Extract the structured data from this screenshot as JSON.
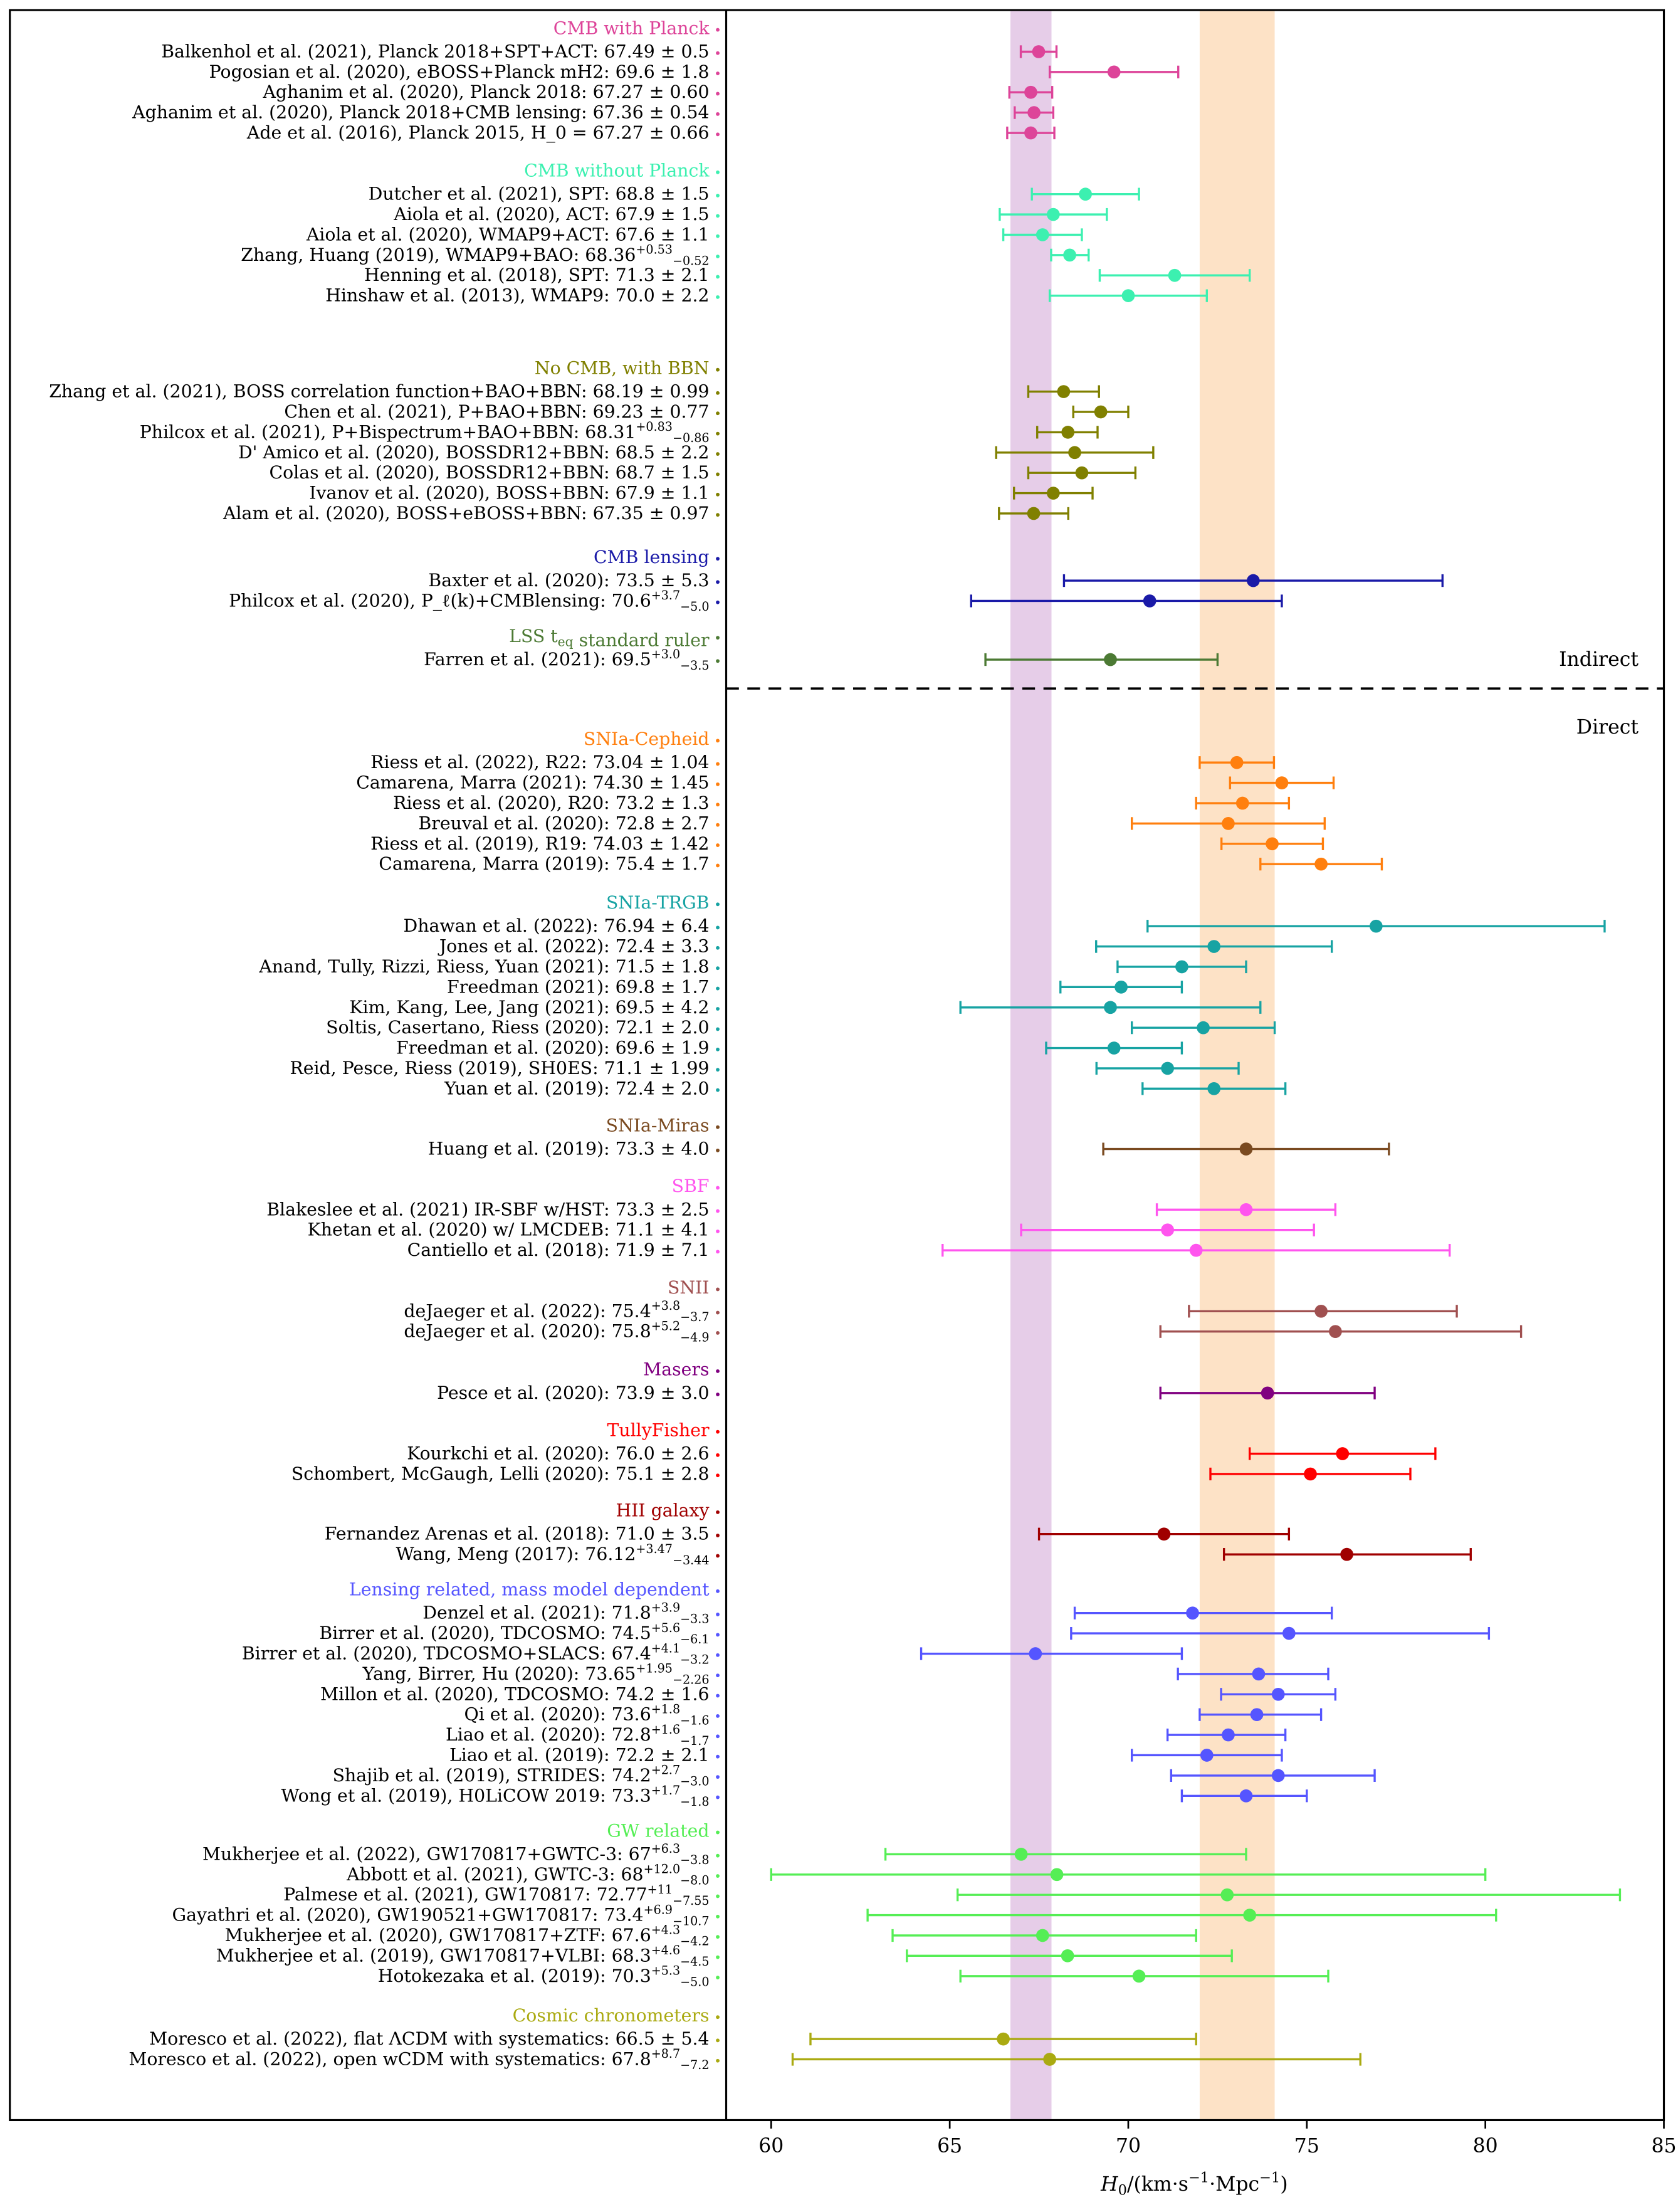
{
  "chart_data": {
    "type": "scatter",
    "subtype": "forest-plot-with-errorbars",
    "xlabel": "H_0/(km·s^{-1}·Mpc^{-1})",
    "xlim": [
      58.74,
      85
    ],
    "xticks": [
      60,
      65,
      70,
      75,
      80,
      85
    ],
    "grid": false,
    "section_labels": {
      "indirect": "Indirect",
      "direct": "Direct"
    },
    "bands": [
      {
        "from": 66.7,
        "to": 67.85,
        "color": "#e6cde8"
      },
      {
        "from": 72.0,
        "to": 74.1,
        "color": "#fde2c6"
      }
    ],
    "groups": [
      {
        "name": "CMB with Planck",
        "color": "#dd4499",
        "section": "indirect",
        "items": [
          {
            "label": "Balkenhol et al. (2021), Planck 2018+SPT+ACT: ",
            "value": "67.49",
            "err": "0.5"
          },
          {
            "label": "Pogosian et al. (2020), eBOSS+Planck mH2: ",
            "value": "69.6",
            "err": "1.8"
          },
          {
            "label": "Aghanim et al. (2020), Planck 2018: ",
            "value": "67.27",
            "err": "0.60"
          },
          {
            "label": "Aghanim et al. (2020), Planck 2018+CMB lensing: ",
            "value": "67.36",
            "err": "0.54"
          },
          {
            "label": "Ade et al. (2016), Planck 2015, H_0 = ",
            "value": "67.27",
            "err": "0.66"
          }
        ]
      },
      {
        "name": "CMB without Planck",
        "color": "#3cf0b0",
        "section": "indirect",
        "items": [
          {
            "label": "Dutcher et al. (2021), SPT: ",
            "value": "68.8",
            "err": "1.5"
          },
          {
            "label": "Aiola et al. (2020), ACT: ",
            "value": "67.9",
            "err": "1.5"
          },
          {
            "label": "Aiola et al. (2020), WMAP9+ACT: ",
            "value": "67.6",
            "err": "1.1"
          },
          {
            "label": "Zhang, Huang (2019), WMAP9+BAO: ",
            "value": "68.36",
            "plus": "0.53",
            "minus": "0.52"
          },
          {
            "label": "Henning et al. (2018), SPT: ",
            "value": "71.3",
            "err": "2.1"
          },
          {
            "label": "Hinshaw et al. (2013), WMAP9: ",
            "value": "70.0",
            "err": "2.2"
          }
        ]
      },
      {
        "name": "No CMB, with BBN",
        "color": "#808000",
        "section": "indirect",
        "items": [
          {
            "label": "Zhang et al. (2021), BOSS correlation function+BAO+BBN: ",
            "value": "68.19",
            "err": "0.99"
          },
          {
            "label": "Chen et al. (2021), P+BAO+BBN: ",
            "value": "69.23",
            "err": "0.77"
          },
          {
            "label": "Philcox et al. (2021), P+Bispectrum+BAO+BBN: ",
            "value": "68.31",
            "plus": "0.83",
            "minus": "0.86"
          },
          {
            "label": "D' Amico et al. (2020), BOSSDR12+BBN: ",
            "value": "68.5",
            "err": "2.2"
          },
          {
            "label": "Colas et al. (2020), BOSSDR12+BBN: ",
            "value": "68.7",
            "err": "1.5"
          },
          {
            "label": "Ivanov et al. (2020), BOSS+BBN: ",
            "value": "67.9",
            "err": "1.1"
          },
          {
            "label": "Alam et al. (2020), BOSS+eBOSS+BBN: ",
            "value": "67.35",
            "err": "0.97"
          }
        ]
      },
      {
        "name": "CMB lensing",
        "color": "#1a1aa8",
        "section": "indirect",
        "items": [
          {
            "label": "Baxter et al. (2020): ",
            "value": "73.5",
            "err": "5.3"
          },
          {
            "label": "Philcox et al. (2020), P_ℓ(k)+CMBlensing: ",
            "value": "70.6",
            "plus": "3.7",
            "minus": "5.0"
          }
        ]
      },
      {
        "name": "LSS t_eq standard ruler",
        "color": "#4c7a34",
        "section": "indirect",
        "items": [
          {
            "label": "Farren et al. (2021): ",
            "value": "69.5",
            "plus": "3.0",
            "minus": "3.5"
          }
        ]
      },
      {
        "name": "SNIa-Cepheid",
        "color": "#ff7f0e",
        "section": "direct",
        "items": [
          {
            "label": "Riess et al. (2022), R22: ",
            "value": "73.04",
            "err": "1.04"
          },
          {
            "label": "Camarena, Marra (2021): ",
            "value": "74.30",
            "err": "1.45"
          },
          {
            "label": "Riess et al. (2020), R20: ",
            "value": "73.2",
            "err": "1.3"
          },
          {
            "label": "Breuval et al. (2020): ",
            "value": "72.8",
            "err": "2.7"
          },
          {
            "label": "Riess et al. (2019), R19: ",
            "value": "74.03",
            "err": "1.42"
          },
          {
            "label": "Camarena, Marra (2019): ",
            "value": "75.4",
            "err": "1.7"
          }
        ]
      },
      {
        "name": "SNIa-TRGB",
        "color": "#17a3a3",
        "section": "direct",
        "items": [
          {
            "label": "Dhawan et al. (2022): ",
            "value": "76.94",
            "err": "6.4"
          },
          {
            "label": "Jones et al. (2022): ",
            "value": "72.4",
            "err": "3.3"
          },
          {
            "label": "Anand, Tully, Rizzi, Riess, Yuan (2021): ",
            "value": "71.5",
            "err": "1.8"
          },
          {
            "label": "Freedman (2021): ",
            "value": "69.8",
            "err": "1.7"
          },
          {
            "label": "Kim, Kang, Lee, Jang (2021): ",
            "value": "69.5",
            "err": "4.2"
          },
          {
            "label": "Soltis, Casertano, Riess (2020): ",
            "value": "72.1",
            "err": "2.0"
          },
          {
            "label": "Freedman et al. (2020): ",
            "value": "69.6",
            "err": "1.9"
          },
          {
            "label": "Reid, Pesce, Riess (2019), SH0ES: ",
            "value": "71.1",
            "err": "1.99"
          },
          {
            "label": "Yuan et al. (2019): ",
            "value": "72.4",
            "err": "2.0"
          }
        ]
      },
      {
        "name": "SNIa-Miras",
        "color": "#7a4a20",
        "section": "direct",
        "items": [
          {
            "label": "Huang et al. (2019): ",
            "value": "73.3",
            "err": "4.0"
          }
        ]
      },
      {
        "name": "SBF",
        "color": "#ff55ee",
        "section": "direct",
        "items": [
          {
            "label": "Blakeslee et al. (2021) IR-SBF w/HST: ",
            "value": "73.3",
            "err": "2.5"
          },
          {
            "label": "Khetan et al. (2020) w/ LMCDEB: ",
            "value": "71.1",
            "err": "4.1"
          },
          {
            "label": "Cantiello et al. (2018): ",
            "value": "71.9",
            "err": "7.1"
          }
        ]
      },
      {
        "name": "SNII",
        "color": "#a05050",
        "section": "direct",
        "items": [
          {
            "label": "deJaeger et al. (2022): ",
            "value": "75.4",
            "plus": "3.8",
            "minus": "3.7"
          },
          {
            "label": "deJaeger et al. (2020): ",
            "value": "75.8",
            "plus": "5.2",
            "minus": "4.9"
          }
        ]
      },
      {
        "name": "Masers",
        "color": "#800080",
        "section": "direct",
        "items": [
          {
            "label": "Pesce et al. (2020): ",
            "value": "73.9",
            "err": "3.0"
          }
        ]
      },
      {
        "name": "TullyFisher",
        "color": "#ff0000",
        "section": "direct",
        "items": [
          {
            "label": "Kourkchi et al. (2020): ",
            "value": "76.0",
            "err": "2.6"
          },
          {
            "label": "Schombert, McGaugh, Lelli (2020): ",
            "value": "75.1",
            "err": "2.8"
          }
        ]
      },
      {
        "name": "HII galaxy",
        "color": "#a00000",
        "section": "direct",
        "items": [
          {
            "label": "Fernandez Arenas et al. (2018): ",
            "value": "71.0",
            "err": "3.5"
          },
          {
            "label": "Wang, Meng (2017): ",
            "value": "76.12",
            "plus": "3.47",
            "minus": "3.44"
          }
        ]
      },
      {
        "name": "Lensing related, mass model dependent",
        "color": "#5555ff",
        "section": "direct",
        "items": [
          {
            "label": "Denzel et al. (2021): ",
            "value": "71.8",
            "plus": "3.9",
            "minus": "3.3"
          },
          {
            "label": "Birrer et al. (2020), TDCOSMO: ",
            "value": "74.5",
            "plus": "5.6",
            "minus": "6.1"
          },
          {
            "label": "Birrer et al. (2020), TDCOSMO+SLACS: ",
            "value": "67.4",
            "plus": "4.1",
            "minus": "3.2"
          },
          {
            "label": "Yang, Birrer, Hu (2020): ",
            "value": "73.65",
            "plus": "1.95",
            "minus": "2.26"
          },
          {
            "label": "Millon et al. (2020), TDCOSMO: ",
            "value": "74.2",
            "err": "1.6"
          },
          {
            "label": "Qi et al. (2020): ",
            "value": "73.6",
            "plus": "1.8",
            "minus": "1.6"
          },
          {
            "label": "Liao et al. (2020): ",
            "value": "72.8",
            "plus": "1.6",
            "minus": "1.7"
          },
          {
            "label": "Liao et al. (2019): ",
            "value": "72.2",
            "err": "2.1"
          },
          {
            "label": "Shajib et al. (2019), STRIDES: ",
            "value": "74.2",
            "plus": "2.7",
            "minus": "3.0"
          },
          {
            "label": "Wong et al. (2019), H0LiCOW 2019: ",
            "value": "73.3",
            "plus": "1.7",
            "minus": "1.8"
          }
        ]
      },
      {
        "name": "GW related",
        "color": "#55ee55",
        "section": "direct",
        "items": [
          {
            "label": "Mukherjee et al. (2022), GW170817+GWTC-3: ",
            "value": "67",
            "plus": "6.3",
            "minus": "3.8"
          },
          {
            "label": "Abbott et al. (2021), GWTC-3: ",
            "value": "68",
            "plus": "12.0",
            "minus": "8.0"
          },
          {
            "label": "Palmese et al. (2021), GW170817: ",
            "value": "72.77",
            "plus": "11",
            "minus": "7.55"
          },
          {
            "label": "Gayathri et al. (2020), GW190521+GW170817: ",
            "value": "73.4",
            "plus": "6.9",
            "minus": "10.7"
          },
          {
            "label": "Mukherjee et al. (2020), GW170817+ZTF: ",
            "value": "67.6",
            "plus": "4.3",
            "minus": "4.2"
          },
          {
            "label": "Mukherjee et al. (2019), GW170817+VLBI: ",
            "value": "68.3",
            "plus": "4.6",
            "minus": "4.5"
          },
          {
            "label": "Hotokezaka et al. (2019): ",
            "value": "70.3",
            "plus": "5.3",
            "minus": "5.0"
          }
        ]
      },
      {
        "name": "Cosmic chronometers",
        "color": "#aaaa11",
        "section": "direct",
        "items": [
          {
            "label": "Moresco et al. (2022), flat ΛCDM with systematics: ",
            "value": "66.5",
            "err": "5.4"
          },
          {
            "label": "Moresco et al. (2022), open wCDM with systematics: ",
            "value": "67.8",
            "plus": "8.7",
            "minus": "7.2"
          }
        ]
      }
    ]
  }
}
